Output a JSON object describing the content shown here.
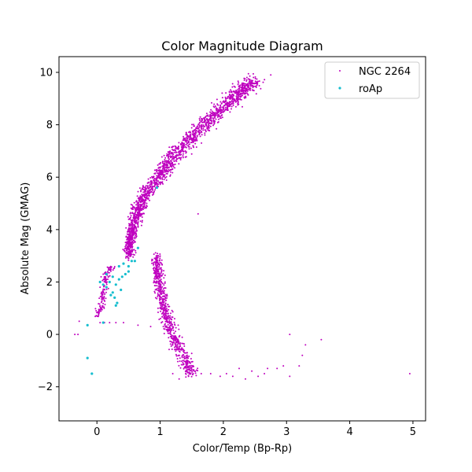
{
  "chart_data": {
    "type": "scatter",
    "title": "Color Magnitude Diagram",
    "xlabel": "Color/Temp (Bp-Rp)",
    "ylabel": "Absolute Mag (GMAG)",
    "xlim": [
      -0.6,
      5.2
    ],
    "ylim": [
      10.6,
      -3.3
    ],
    "y_inverted": true,
    "xticks": [
      0,
      1,
      2,
      3,
      4,
      5
    ],
    "yticks": [
      -2,
      0,
      2,
      4,
      6,
      8,
      10
    ],
    "xtick_labels": [
      "0",
      "1",
      "2",
      "3",
      "4",
      "5"
    ],
    "ytick_labels": [
      "−2",
      "0",
      "2",
      "4",
      "6",
      "8",
      "10"
    ],
    "grid": false,
    "legend_position": "upper right",
    "series": [
      {
        "name": "NGC 2264",
        "color": "#bf00bf",
        "marker": "dot",
        "ridge": [
          [
            0.5,
            3.0
          ],
          [
            0.52,
            3.5
          ],
          [
            0.56,
            4.0
          ],
          [
            0.62,
            4.5
          ],
          [
            0.7,
            5.0
          ],
          [
            0.82,
            5.5
          ],
          [
            0.98,
            6.0
          ],
          [
            1.12,
            6.5
          ],
          [
            1.28,
            7.0
          ],
          [
            1.48,
            7.5
          ],
          [
            1.7,
            8.0
          ],
          [
            1.92,
            8.5
          ],
          [
            2.15,
            9.0
          ],
          [
            2.35,
            9.4
          ],
          [
            2.5,
            9.7
          ]
        ],
        "giant_branch": [
          [
            0.95,
            3.0
          ],
          [
            0.95,
            2.5
          ],
          [
            0.98,
            2.0
          ],
          [
            1.02,
            1.5
          ],
          [
            1.07,
            1.0
          ],
          [
            1.12,
            0.5
          ],
          [
            1.2,
            0.0
          ],
          [
            1.3,
            -0.5
          ],
          [
            1.4,
            -1.0
          ],
          [
            1.5,
            -1.5
          ]
        ],
        "blue_sequence": [
          [
            0.0,
            0.7
          ],
          [
            0.05,
            1.0
          ],
          [
            0.1,
            1.5
          ],
          [
            0.12,
            2.0
          ],
          [
            0.18,
            2.4
          ],
          [
            0.25,
            2.6
          ]
        ],
        "points": [
          [
            -0.35,
            0.0
          ],
          [
            -0.3,
            0.0
          ],
          [
            -0.28,
            0.5
          ],
          [
            0.05,
            0.45
          ],
          [
            0.12,
            0.45
          ],
          [
            0.2,
            0.45
          ],
          [
            0.3,
            0.45
          ],
          [
            0.42,
            0.45
          ],
          [
            0.65,
            0.35
          ],
          [
            0.85,
            0.3
          ],
          [
            1.05,
            0.3
          ],
          [
            1.2,
            -1.5
          ],
          [
            1.3,
            -1.7
          ],
          [
            1.45,
            -1.6
          ],
          [
            1.55,
            -1.4
          ],
          [
            1.65,
            -1.5
          ],
          [
            1.8,
            -1.5
          ],
          [
            1.95,
            -1.6
          ],
          [
            2.05,
            -1.5
          ],
          [
            2.15,
            -1.6
          ],
          [
            2.25,
            -1.3
          ],
          [
            2.35,
            -1.7
          ],
          [
            2.45,
            -1.4
          ],
          [
            2.55,
            -1.6
          ],
          [
            2.65,
            -1.5
          ],
          [
            2.7,
            -1.3
          ],
          [
            2.85,
            -1.3
          ],
          [
            2.95,
            -1.2
          ],
          [
            3.05,
            -1.6
          ],
          [
            3.2,
            -1.2
          ],
          [
            3.25,
            -0.8
          ],
          [
            3.3,
            -0.4
          ],
          [
            3.55,
            -0.2
          ],
          [
            4.95,
            -1.5
          ],
          [
            3.05,
            0.0
          ],
          [
            1.6,
            4.6
          ],
          [
            0.05,
            1.8
          ],
          [
            0.1,
            2.3
          ],
          [
            0.9,
            2.5
          ],
          [
            2.75,
            9.9
          ]
        ]
      },
      {
        "name": "roAp",
        "color": "#17becf",
        "marker": "circle",
        "points": [
          [
            -0.08,
            -1.5
          ],
          [
            -0.15,
            -0.9
          ],
          [
            -0.15,
            0.35
          ],
          [
            0.1,
            0.45
          ],
          [
            0.3,
            1.1
          ],
          [
            0.32,
            1.2
          ],
          [
            0.28,
            1.4
          ],
          [
            0.25,
            1.6
          ],
          [
            0.15,
            1.8
          ],
          [
            0.1,
            1.9
          ],
          [
            0.2,
            2.0
          ],
          [
            0.3,
            1.9
          ],
          [
            0.35,
            2.1
          ],
          [
            0.4,
            2.2
          ],
          [
            0.45,
            2.3
          ],
          [
            0.5,
            2.4
          ],
          [
            0.25,
            2.2
          ],
          [
            0.15,
            2.3
          ],
          [
            0.35,
            2.6
          ],
          [
            0.42,
            2.7
          ],
          [
            0.5,
            2.6
          ],
          [
            0.55,
            2.8
          ],
          [
            0.6,
            2.8
          ],
          [
            0.65,
            3.3
          ],
          [
            0.95,
            5.6
          ],
          [
            0.05,
            2.0
          ],
          [
            0.38,
            1.7
          ],
          [
            0.22,
            1.5
          ]
        ]
      }
    ]
  }
}
